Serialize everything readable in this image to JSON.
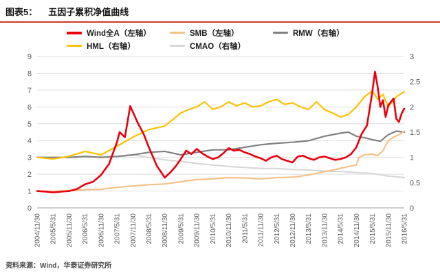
{
  "header": {
    "label": "图表5：",
    "title": "五因子累积净值曲线"
  },
  "footer": {
    "source": "资料来源：Wind，华泰证券研究所"
  },
  "accent_colors": {
    "title_rule": "#cf3a28",
    "tick_text": "#595959",
    "gridline": "#dddddd",
    "axis_line": "#a0a0a0"
  },
  "chart_data": {
    "type": "line",
    "title": "五因子累积净值曲线",
    "x_unit": "months since 2004/11",
    "x_max": 138,
    "grid": "horizontal",
    "legend_position": "top",
    "x_labels": [
      "2004/11/30",
      "2005/5/31",
      "2005/11/30",
      "2006/5/31",
      "2006/11/30",
      "2007/5/31",
      "2007/11/30",
      "2008/5/31",
      "2008/11/30",
      "2009/5/31",
      "2009/11/30",
      "2010/5/31",
      "2010/11/30",
      "2011/5/31",
      "2011/11/30",
      "2012/5/31",
      "2012/11/30",
      "2013/5/31",
      "2013/11/30",
      "2014/5/31",
      "2014/11/30",
      "2015/5/31",
      "2015/11/30",
      "2016/5/31"
    ],
    "x_label_positions": [
      0,
      6,
      12,
      18,
      24,
      30,
      36,
      42,
      48,
      54,
      60,
      66,
      72,
      78,
      84,
      90,
      96,
      102,
      108,
      114,
      120,
      126,
      132,
      138
    ],
    "left_axis": {
      "min": 0,
      "max": 9,
      "ticks": [
        0,
        1,
        2,
        3,
        4,
        5,
        6,
        7,
        8,
        9
      ]
    },
    "right_axis": {
      "min": 0,
      "max": 3,
      "ticks": [
        "0",
        "0.5",
        "1",
        "1.5",
        "2",
        "2.5",
        "3"
      ]
    },
    "draw_order": [
      4,
      2,
      1,
      3,
      0
    ],
    "series": [
      {
        "name": "Wind全A（左轴）",
        "short_name": "wind-quan-a",
        "axis": "left",
        "color": "#e8000d",
        "stroke_width": 2.6,
        "x": [
          0,
          3,
          6,
          9,
          12,
          15,
          18,
          21,
          24,
          27,
          30,
          31,
          33,
          35,
          38,
          40,
          42,
          45,
          48,
          50,
          52,
          54,
          56,
          58,
          60,
          62,
          64,
          66,
          68,
          70,
          72,
          74,
          76,
          78,
          80,
          82,
          84,
          86,
          88,
          90,
          92,
          94,
          96,
          98,
          100,
          102,
          104,
          106,
          108,
          110,
          112,
          114,
          116,
          118,
          120,
          122,
          124,
          126,
          127,
          128,
          129,
          130,
          131,
          132,
          134,
          135,
          136,
          137,
          138
        ],
        "values": [
          1.0,
          0.97,
          0.92,
          0.96,
          1.0,
          1.12,
          1.4,
          1.55,
          1.95,
          2.6,
          3.9,
          4.5,
          4.2,
          6.05,
          5.0,
          4.4,
          3.6,
          2.5,
          1.8,
          2.1,
          2.45,
          2.9,
          3.4,
          3.2,
          3.5,
          3.25,
          3.05,
          2.9,
          3.0,
          3.25,
          3.55,
          3.4,
          3.45,
          3.3,
          3.2,
          3.05,
          2.95,
          2.8,
          3.0,
          3.1,
          2.9,
          2.8,
          2.7,
          3.05,
          3.1,
          2.95,
          2.85,
          3.0,
          3.05,
          2.95,
          2.85,
          2.9,
          3.0,
          3.2,
          3.6,
          4.4,
          4.9,
          6.9,
          8.1,
          7.2,
          6.0,
          6.4,
          5.4,
          6.1,
          6.5,
          5.3,
          5.1,
          5.6,
          5.9
        ]
      },
      {
        "name": "SMB（左轴）",
        "short_name": "smb",
        "axis": "left",
        "color": "#f5c188",
        "stroke_width": 2.2,
        "x": [
          0,
          6,
          12,
          18,
          24,
          30,
          36,
          42,
          48,
          54,
          60,
          66,
          72,
          78,
          84,
          90,
          96,
          102,
          108,
          114,
          120,
          121,
          123,
          126,
          128,
          130,
          132,
          134,
          136,
          138
        ],
        "values": [
          1.0,
          0.98,
          1.02,
          1.08,
          1.1,
          1.22,
          1.3,
          1.38,
          1.42,
          1.55,
          1.68,
          1.72,
          1.8,
          1.78,
          1.72,
          1.8,
          1.82,
          1.95,
          2.15,
          2.35,
          2.55,
          3.0,
          3.15,
          3.2,
          3.1,
          3.4,
          4.0,
          4.2,
          4.35,
          4.55
        ]
      },
      {
        "name": "RMW（右轴）",
        "short_name": "rmw",
        "axis": "right",
        "color": "#808080",
        "stroke_width": 2.2,
        "x": [
          0,
          6,
          12,
          18,
          24,
          30,
          36,
          42,
          48,
          54,
          60,
          66,
          72,
          78,
          84,
          90,
          96,
          102,
          108,
          114,
          117,
          120,
          124,
          126,
          129,
          132,
          135,
          138
        ],
        "values": [
          1.0,
          1.0,
          1.0,
          1.02,
          1.0,
          1.02,
          1.05,
          1.1,
          1.12,
          1.05,
          1.1,
          1.15,
          1.15,
          1.2,
          1.25,
          1.28,
          1.3,
          1.33,
          1.42,
          1.48,
          1.5,
          1.42,
          1.38,
          1.35,
          1.32,
          1.45,
          1.52,
          1.5
        ]
      },
      {
        "name": "HML（右轴）",
        "short_name": "hml",
        "axis": "right",
        "color": "#ffc000",
        "stroke_width": 2.2,
        "x": [
          0,
          6,
          12,
          18,
          24,
          30,
          36,
          42,
          48,
          54,
          57,
          60,
          63,
          66,
          69,
          72,
          75,
          78,
          81,
          84,
          87,
          90,
          93,
          96,
          99,
          102,
          105,
          108,
          111,
          114,
          117,
          120,
          123,
          126,
          128,
          130,
          132,
          135,
          138
        ],
        "values": [
          1.0,
          0.97,
          1.02,
          1.12,
          1.05,
          1.22,
          1.4,
          1.55,
          1.62,
          1.88,
          1.95,
          2.0,
          2.1,
          1.95,
          2.0,
          2.1,
          2.02,
          2.08,
          2.0,
          2.02,
          2.1,
          2.15,
          2.05,
          2.08,
          2.0,
          1.95,
          2.1,
          1.95,
          1.88,
          1.8,
          1.85,
          2.0,
          2.2,
          2.32,
          2.15,
          2.25,
          2.0,
          2.2,
          2.3
        ]
      },
      {
        "name": "CMAO（右轴）",
        "short_name": "cmao",
        "axis": "right",
        "color": "#d8d8d8",
        "stroke_width": 2.2,
        "x": [
          0,
          6,
          12,
          18,
          24,
          30,
          36,
          42,
          48,
          54,
          60,
          66,
          72,
          78,
          84,
          90,
          96,
          102,
          108,
          114,
          120,
          126,
          132,
          138
        ],
        "values": [
          1.0,
          1.0,
          1.0,
          1.0,
          1.02,
          1.0,
          1.05,
          1.0,
          0.95,
          0.92,
          0.88,
          0.85,
          0.82,
          0.8,
          0.78,
          0.78,
          0.76,
          0.75,
          0.73,
          0.72,
          0.7,
          0.68,
          0.63,
          0.6
        ]
      }
    ]
  }
}
